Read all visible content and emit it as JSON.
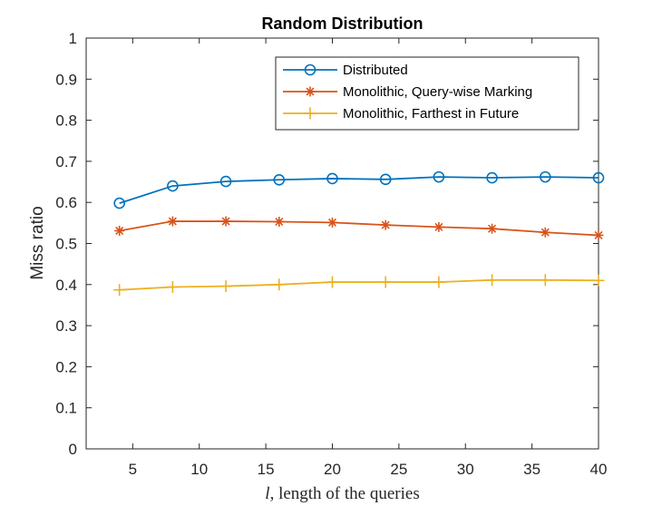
{
  "chart_data": {
    "type": "line",
    "title": "Random Distribution",
    "ylabel": "Miss ratio",
    "xlabel_var": "l",
    "xlabel_rest": ", length of the queries",
    "x": [
      4,
      8,
      12,
      16,
      20,
      24,
      28,
      32,
      36,
      40
    ],
    "xlim": [
      1.5,
      40
    ],
    "ylim": [
      0,
      1
    ],
    "xticks": [
      5,
      10,
      15,
      20,
      25,
      30,
      35,
      40
    ],
    "yticks": [
      0,
      0.1,
      0.2,
      0.3,
      0.4,
      0.5,
      0.6,
      0.7,
      0.8,
      0.9,
      1
    ],
    "grid": false,
    "legend_position": "top-right",
    "series": [
      {
        "name": "Distributed",
        "color": "#0072BD",
        "marker": "circle",
        "values": [
          0.598,
          0.64,
          0.651,
          0.655,
          0.658,
          0.656,
          0.662,
          0.66,
          0.662,
          0.66
        ]
      },
      {
        "name": "Monolithic, Query-wise Marking",
        "color": "#D95319",
        "marker": "asterisk",
        "values": [
          0.531,
          0.554,
          0.554,
          0.553,
          0.551,
          0.545,
          0.54,
          0.536,
          0.527,
          0.52
        ]
      },
      {
        "name": "Monolithic, Farthest in Future",
        "color": "#EDB120",
        "marker": "plus",
        "values": [
          0.387,
          0.394,
          0.396,
          0.4,
          0.406,
          0.406,
          0.406,
          0.411,
          0.411,
          0.41
        ]
      }
    ]
  }
}
